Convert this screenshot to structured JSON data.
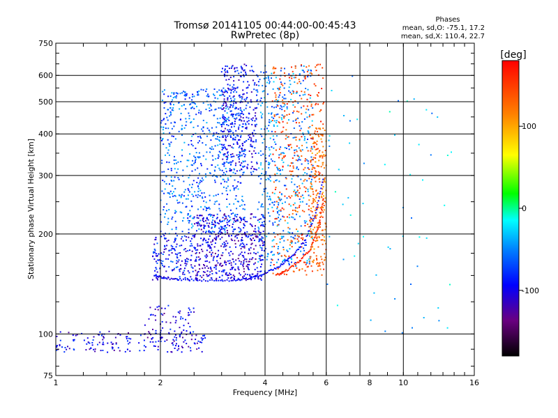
{
  "chart_data": {
    "type": "scatter",
    "title": "Tromsø 20141105 00:44:00-00:45:43",
    "subtitle": "RwPretec (8p)",
    "xlabel": "Frequency [MHz]",
    "ylabel": "Stationary phase Virtual Height [km]",
    "x_scale": "log",
    "y_scale": "log",
    "xlim": [
      1,
      16
    ],
    "ylim": [
      75,
      750
    ],
    "x_ticks": [
      1,
      2,
      4,
      6,
      8,
      10,
      16
    ],
    "x_tick_labels": [
      "1",
      "2",
      "4",
      "6",
      "8",
      "10",
      "16"
    ],
    "x_grid": [
      2,
      4,
      6,
      7.5,
      10
    ],
    "y_ticks": [
      75,
      100,
      200,
      300,
      400,
      500,
      600,
      750
    ],
    "y_tick_labels": [
      "75",
      "100",
      "200",
      "300",
      "400",
      "500",
      "600",
      "750"
    ],
    "y_grid": [
      100,
      200,
      300,
      400,
      500,
      600
    ],
    "grid": true,
    "stats": {
      "heading": "Phases",
      "line_o": "mean, sd,O: -75.1, 17.2",
      "line_x": "mean, sd,X: 110.4, 22.7"
    },
    "colorbar": {
      "title": "[deg]",
      "range": [
        -180,
        180
      ],
      "ticks": [
        100,
        0,
        -100
      ],
      "tick_labels": [
        "100",
        "0",
        "-100"
      ],
      "colormap": "rainbow"
    },
    "point_groups": [
      {
        "f_min": 1.0,
        "f_max": 2.7,
        "h_min": 88,
        "h_max": 102,
        "n": 180,
        "phase": -105
      },
      {
        "f_min": 1.8,
        "f_max": 2.5,
        "h_min": 100,
        "h_max": 122,
        "n": 60,
        "phase": -110
      },
      {
        "f_min": 1.9,
        "f_max": 2.5,
        "h_min": 145,
        "h_max": 200,
        "n": 160,
        "phase": -95
      },
      {
        "f_min": 2.0,
        "f_max": 3.5,
        "h_min": 200,
        "h_max": 550,
        "n": 700,
        "phase": -70
      },
      {
        "f_min": 2.5,
        "f_max": 4.0,
        "h_min": 145,
        "h_max": 230,
        "n": 500,
        "phase": -110
      },
      {
        "f_min": 3.0,
        "f_max": 3.8,
        "h_min": 300,
        "h_max": 650,
        "n": 350,
        "phase": -100
      },
      {
        "f_min": 3.8,
        "f_max": 5.5,
        "h_min": 160,
        "h_max": 650,
        "n": 500,
        "phase": -60
      },
      {
        "f_min": 4.2,
        "f_max": 5.9,
        "h_min": 150,
        "h_max": 650,
        "n": 350,
        "phase": 140
      },
      {
        "f_min": 5.4,
        "f_max": 6.0,
        "h_min": 160,
        "h_max": 420,
        "n": 200,
        "phase": 120
      },
      {
        "f_min": 6.0,
        "f_max": 14.0,
        "h_min": 100,
        "h_max": 650,
        "n": 60,
        "phase": -40
      }
    ],
    "series": [
      {
        "name": "O-mode cusp",
        "x": [
          1.92,
          2.05,
          2.3,
          2.7,
          3.2,
          3.6,
          4.0,
          4.4,
          4.8,
          5.2,
          5.6,
          5.9
        ],
        "y": [
          150,
          147,
          146,
          145,
          145,
          147,
          152,
          160,
          172,
          190,
          230,
          300
        ],
        "phase": -100
      },
      {
        "name": "X-mode cusp",
        "x": [
          4.3,
          4.6,
          5.0,
          5.4,
          5.7,
          5.9
        ],
        "y": [
          150,
          155,
          165,
          180,
          210,
          260
        ],
        "phase": 160
      }
    ]
  }
}
